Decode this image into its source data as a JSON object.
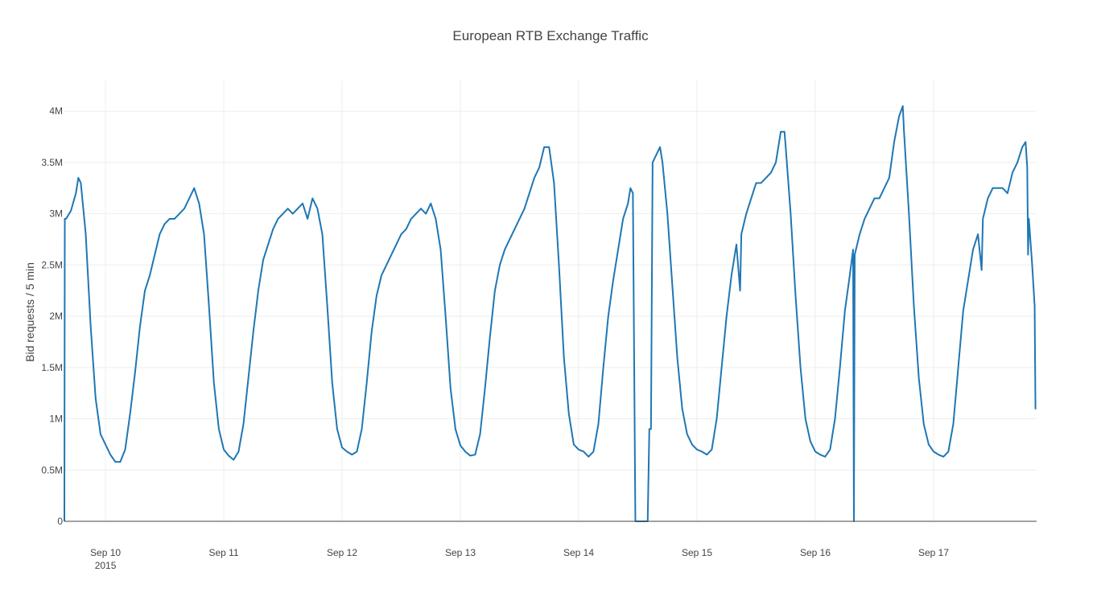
{
  "chart_data": {
    "type": "line",
    "title": "European RTB Exchange Traffic",
    "y_label": "Bid requests / 5 min",
    "color": "#1f77b4",
    "grid": true,
    "xlim": [
      "2015-09-09 15:40",
      "2015-09-17 20:54"
    ],
    "xticks": [
      {
        "value": "2015-09-10",
        "label": "Sep 10",
        "sublabel": "2015"
      },
      {
        "value": "2015-09-11",
        "label": "Sep 11"
      },
      {
        "value": "2015-09-12",
        "label": "Sep 12"
      },
      {
        "value": "2015-09-13",
        "label": "Sep 13"
      },
      {
        "value": "2015-09-14",
        "label": "Sep 14"
      },
      {
        "value": "2015-09-15",
        "label": "Sep 15"
      },
      {
        "value": "2015-09-16",
        "label": "Sep 16"
      },
      {
        "value": "2015-09-17",
        "label": "Sep 17"
      }
    ],
    "ylim": [
      0,
      4300000
    ],
    "yticks": [
      0,
      {
        "value": 500000,
        "label": "0.5M"
      },
      {
        "value": 1000000,
        "label": "1M"
      },
      {
        "value": 1500000,
        "label": "1.5M"
      },
      {
        "value": 2000000,
        "label": "2M"
      },
      {
        "value": 2500000,
        "label": "2.5M"
      },
      {
        "value": 3000000,
        "label": "3M"
      },
      {
        "value": 3500000,
        "label": "3.5M"
      },
      {
        "value": 4000000,
        "label": "4M"
      }
    ],
    "x": [
      "2015-09-09 15:40",
      "2015-09-09 15:45",
      "2015-09-09 16:00",
      "2015-09-09 17:00",
      "2015-09-09 18:00",
      "2015-09-09 18:30",
      "2015-09-09 19:00",
      "2015-09-09 20:00",
      "2015-09-09 21:00",
      "2015-09-09 22:00",
      "2015-09-09 23:00",
      "2015-09-10 00:00",
      "2015-09-10 01:00",
      "2015-09-10 02:00",
      "2015-09-10 03:00",
      "2015-09-10 04:00",
      "2015-09-10 05:00",
      "2015-09-10 06:00",
      "2015-09-10 07:00",
      "2015-09-10 08:00",
      "2015-09-10 09:00",
      "2015-09-10 10:00",
      "2015-09-10 11:00",
      "2015-09-10 12:00",
      "2015-09-10 13:00",
      "2015-09-10 14:00",
      "2015-09-10 15:00",
      "2015-09-10 16:00",
      "2015-09-10 17:00",
      "2015-09-10 18:00",
      "2015-09-10 19:00",
      "2015-09-10 20:00",
      "2015-09-10 21:00",
      "2015-09-10 22:00",
      "2015-09-10 23:00",
      "2015-09-11 00:00",
      "2015-09-11 01:00",
      "2015-09-11 02:00",
      "2015-09-11 03:00",
      "2015-09-11 04:00",
      "2015-09-11 05:00",
      "2015-09-11 06:00",
      "2015-09-11 07:00",
      "2015-09-11 08:00",
      "2015-09-11 09:00",
      "2015-09-11 10:00",
      "2015-09-11 11:00",
      "2015-09-11 12:00",
      "2015-09-11 13:00",
      "2015-09-11 14:00",
      "2015-09-11 15:00",
      "2015-09-11 16:00",
      "2015-09-11 17:00",
      "2015-09-11 18:00",
      "2015-09-11 19:00",
      "2015-09-11 20:00",
      "2015-09-11 21:00",
      "2015-09-11 22:00",
      "2015-09-11 23:00",
      "2015-09-12 00:00",
      "2015-09-12 01:00",
      "2015-09-12 02:00",
      "2015-09-12 03:00",
      "2015-09-12 04:00",
      "2015-09-12 05:00",
      "2015-09-12 06:00",
      "2015-09-12 07:00",
      "2015-09-12 08:00",
      "2015-09-12 09:00",
      "2015-09-12 10:00",
      "2015-09-12 11:00",
      "2015-09-12 12:00",
      "2015-09-12 13:00",
      "2015-09-12 14:00",
      "2015-09-12 15:00",
      "2015-09-12 16:00",
      "2015-09-12 17:00",
      "2015-09-12 18:00",
      "2015-09-12 19:00",
      "2015-09-12 20:00",
      "2015-09-12 21:00",
      "2015-09-12 22:00",
      "2015-09-12 23:00",
      "2015-09-13 00:00",
      "2015-09-13 01:00",
      "2015-09-13 02:00",
      "2015-09-13 03:00",
      "2015-09-13 04:00",
      "2015-09-13 05:00",
      "2015-09-13 06:00",
      "2015-09-13 07:00",
      "2015-09-13 08:00",
      "2015-09-13 09:00",
      "2015-09-13 10:00",
      "2015-09-13 11:00",
      "2015-09-13 12:00",
      "2015-09-13 13:00",
      "2015-09-13 14:00",
      "2015-09-13 15:00",
      "2015-09-13 16:00",
      "2015-09-13 17:00",
      "2015-09-13 18:00",
      "2015-09-13 19:00",
      "2015-09-13 20:00",
      "2015-09-13 21:00",
      "2015-09-13 22:00",
      "2015-09-13 23:00",
      "2015-09-14 00:00",
      "2015-09-14 01:00",
      "2015-09-14 02:00",
      "2015-09-14 03:00",
      "2015-09-14 04:00",
      "2015-09-14 05:00",
      "2015-09-14 06:00",
      "2015-09-14 07:00",
      "2015-09-14 08:00",
      "2015-09-14 09:00",
      "2015-09-14 10:00",
      "2015-09-14 10:30",
      "2015-09-14 11:00",
      "2015-09-14 11:30",
      "2015-09-14 14:00",
      "2015-09-14 14:20",
      "2015-09-14 14:40",
      "2015-09-14 15:00",
      "2015-09-14 16:00",
      "2015-09-14 16:30",
      "2015-09-14 17:00",
      "2015-09-14 18:00",
      "2015-09-14 19:00",
      "2015-09-14 20:00",
      "2015-09-14 21:00",
      "2015-09-14 22:00",
      "2015-09-14 23:00",
      "2015-09-15 00:00",
      "2015-09-15 01:00",
      "2015-09-15 02:00",
      "2015-09-15 03:00",
      "2015-09-15 04:00",
      "2015-09-15 05:00",
      "2015-09-15 06:00",
      "2015-09-15 07:00",
      "2015-09-15 08:00",
      "2015-09-15 08:45",
      "2015-09-15 09:00",
      "2015-09-15 10:00",
      "2015-09-15 11:00",
      "2015-09-15 12:00",
      "2015-09-15 13:00",
      "2015-09-15 14:00",
      "2015-09-15 15:00",
      "2015-09-15 16:00",
      "2015-09-15 17:00",
      "2015-09-15 17:45",
      "2015-09-15 18:00",
      "2015-09-15 19:00",
      "2015-09-15 20:00",
      "2015-09-15 21:00",
      "2015-09-15 22:00",
      "2015-09-15 23:00",
      "2015-09-16 00:00",
      "2015-09-16 01:00",
      "2015-09-16 02:00",
      "2015-09-16 03:00",
      "2015-09-16 04:00",
      "2015-09-16 05:00",
      "2015-09-16 06:00",
      "2015-09-16 07:00",
      "2015-09-16 07:40",
      "2015-09-16 07:50",
      "2015-09-16 08:00",
      "2015-09-16 09:00",
      "2015-09-16 10:00",
      "2015-09-16 11:00",
      "2015-09-16 12:00",
      "2015-09-16 13:00",
      "2015-09-16 14:00",
      "2015-09-16 15:00",
      "2015-09-16 16:00",
      "2015-09-16 17:00",
      "2015-09-16 17:45",
      "2015-09-16 18:00",
      "2015-09-16 19:00",
      "2015-09-16 20:00",
      "2015-09-16 21:00",
      "2015-09-16 22:00",
      "2015-09-16 23:00",
      "2015-09-17 00:00",
      "2015-09-17 01:00",
      "2015-09-17 02:00",
      "2015-09-17 03:00",
      "2015-09-17 04:00",
      "2015-09-17 05:00",
      "2015-09-17 06:00",
      "2015-09-17 07:00",
      "2015-09-17 08:00",
      "2015-09-17 09:00",
      "2015-09-17 09:45",
      "2015-09-17 10:00",
      "2015-09-17 11:00",
      "2015-09-17 12:00",
      "2015-09-17 13:00",
      "2015-09-17 14:00",
      "2015-09-17 15:00",
      "2015-09-17 16:00",
      "2015-09-17 17:00",
      "2015-09-17 18:00",
      "2015-09-17 18:40",
      "2015-09-17 19:00",
      "2015-09-17 19:10",
      "2015-09-17 19:20",
      "2015-09-17 20:00",
      "2015-09-17 20:30",
      "2015-09-17 20:40",
      "2015-09-17 20:50"
    ],
    "values": [
      0,
      2950000,
      2950000,
      3030000,
      3200000,
      3350000,
      3300000,
      2800000,
      1900000,
      1200000,
      850000,
      750000,
      650000,
      580000,
      580000,
      700000,
      1050000,
      1450000,
      1900000,
      2250000,
      2400000,
      2600000,
      2800000,
      2900000,
      2950000,
      2950000,
      3000000,
      3050000,
      3150000,
      3250000,
      3100000,
      2800000,
      2100000,
      1350000,
      900000,
      700000,
      640000,
      600000,
      680000,
      950000,
      1400000,
      1850000,
      2250000,
      2550000,
      2700000,
      2850000,
      2950000,
      3000000,
      3050000,
      3000000,
      3050000,
      3100000,
      2950000,
      3150000,
      3050000,
      2800000,
      2100000,
      1350000,
      900000,
      720000,
      680000,
      650000,
      680000,
      900000,
      1350000,
      1850000,
      2200000,
      2400000,
      2500000,
      2600000,
      2700000,
      2800000,
      2850000,
      2950000,
      3000000,
      3050000,
      3000000,
      3100000,
      2950000,
      2650000,
      2000000,
      1300000,
      900000,
      740000,
      680000,
      640000,
      650000,
      850000,
      1300000,
      1800000,
      2250000,
      2500000,
      2650000,
      2750000,
      2850000,
      2950000,
      3050000,
      3200000,
      3350000,
      3450000,
      3650000,
      3650000,
      3300000,
      2500000,
      1600000,
      1050000,
      750000,
      700000,
      680000,
      630000,
      680000,
      950000,
      1500000,
      2000000,
      2350000,
      2650000,
      2950000,
      3100000,
      3250000,
      3200000,
      0,
      0,
      900000,
      900000,
      3500000,
      3600000,
      3650000,
      3500000,
      3000000,
      2300000,
      1600000,
      1100000,
      850000,
      750000,
      700000,
      680000,
      650000,
      700000,
      1000000,
      1500000,
      2000000,
      2400000,
      2700000,
      2250000,
      2800000,
      3000000,
      3150000,
      3300000,
      3300000,
      3350000,
      3400000,
      3500000,
      3800000,
      3800000,
      3650000,
      3000000,
      2200000,
      1500000,
      1000000,
      780000,
      680000,
      650000,
      630000,
      700000,
      1000000,
      1500000,
      2050000,
      2400000,
      2650000,
      0,
      2600000,
      2800000,
      2950000,
      3050000,
      3150000,
      3150000,
      3250000,
      3350000,
      3700000,
      3950000,
      4050000,
      3800000,
      3000000,
      2100000,
      1400000,
      950000,
      750000,
      680000,
      650000,
      630000,
      680000,
      950000,
      1500000,
      2050000,
      2350000,
      2650000,
      2800000,
      2450000,
      2950000,
      3150000,
      3250000,
      3250000,
      3250000,
      3200000,
      3400000,
      3500000,
      3650000,
      3700000,
      3450000,
      2600000,
      2950000,
      2500000,
      2100000,
      1100000,
      1100000
    ]
  }
}
